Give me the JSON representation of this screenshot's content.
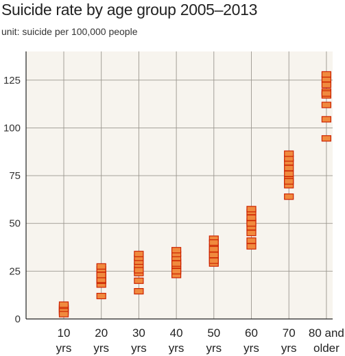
{
  "chart_data": {
    "type": "scatter",
    "title": "Suicide rate by age group 2005–2013",
    "subtitle": "unit: suicide per 100,000 people",
    "xlabel": "",
    "ylabel": "",
    "ylim": [
      0,
      140
    ],
    "yticks": [
      0,
      25,
      50,
      75,
      100,
      125
    ],
    "grid": true,
    "marker": "square",
    "marker_color": "#f08a3e",
    "marker_edge_color": "#cc2200",
    "plot_background": "#f7f4ee",
    "categories": [
      {
        "line1": "10",
        "line2": "yrs"
      },
      {
        "line1": "20",
        "line2": "yrs"
      },
      {
        "line1": "30",
        "line2": "yrs"
      },
      {
        "line1": "40",
        "line2": "yrs"
      },
      {
        "line1": "50",
        "line2": "yrs"
      },
      {
        "line1": "60",
        "line2": "yrs"
      },
      {
        "line1": "70",
        "line2": "yrs"
      },
      {
        "line1": "80 and",
        "line2": "older"
      }
    ],
    "values": [
      [
        4.5,
        5.5,
        6.5,
        5.0,
        3.5,
        6.0,
        7.5,
        4.0,
        2.5
      ],
      [
        12.0,
        18.0,
        20.0,
        22.0,
        24.0,
        26.0,
        20.5,
        23.0,
        27.5
      ],
      [
        14.5,
        20.0,
        24.0,
        26.0,
        28.0,
        30.0,
        32.0,
        34.0,
        25.5
      ],
      [
        23.0,
        26.0,
        28.0,
        30.0,
        32.0,
        34.0,
        36.0,
        29.0,
        25.0
      ],
      [
        29.0,
        32.0,
        35.0,
        38.0,
        42.0,
        30.5,
        36.5,
        33.5,
        40.0
      ],
      [
        38.0,
        41.0,
        45.0,
        48.0,
        51.0,
        53.0,
        56.0,
        57.5,
        50.0
      ],
      [
        64.0,
        70.0,
        73.0,
        76.0,
        79.0,
        82.0,
        84.0,
        86.5,
        72.0
      ],
      [
        94.5,
        104.5,
        112.0,
        117.0,
        119.0,
        122.5,
        125.5,
        128.0,
        118.0
      ]
    ]
  }
}
